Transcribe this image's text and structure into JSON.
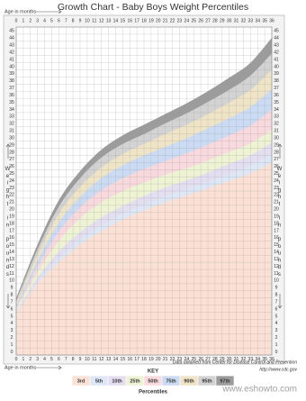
{
  "chart_data": {
    "type": "area",
    "title": "Growth Chart - Baby Boys Weight Percentiles",
    "xlabel": "Age in months",
    "ylabel": "Weight in pounds",
    "key_title": "KEY",
    "legend_title": "Percentiles",
    "source": "Data obtained from Center for Disease Control and Prevention",
    "source_url": "http://www.cdc.gov",
    "watermark": "www.eshowto.com",
    "x": [
      0,
      3,
      6,
      9,
      12,
      15,
      18,
      21,
      24,
      27,
      30,
      33,
      36
    ],
    "xlim": [
      0,
      36
    ],
    "xticks": [
      0,
      1,
      2,
      3,
      4,
      5,
      6,
      7,
      8,
      9,
      10,
      11,
      12,
      13,
      14,
      15,
      16,
      17,
      18,
      19,
      20,
      21,
      22,
      23,
      24,
      25,
      26,
      27,
      28,
      29,
      30,
      31,
      32,
      33,
      34,
      35,
      36
    ],
    "ylim": [
      0,
      46
    ],
    "yticks": [
      0,
      1,
      2,
      3,
      4,
      5,
      6,
      7,
      8,
      9,
      10,
      11,
      12,
      13,
      14,
      15,
      16,
      17,
      18,
      19,
      20,
      21,
      22,
      23,
      24,
      25,
      26,
      27,
      28,
      29,
      30,
      31,
      32,
      33,
      34,
      35,
      36,
      37,
      38,
      39,
      40,
      41,
      42,
      43,
      44,
      45
    ],
    "grid": true,
    "series": [
      {
        "name": "3rd",
        "color": "#fbe1d5",
        "values": [
          5.7,
          10.0,
          13.0,
          15.5,
          17.4,
          19.0,
          20.3,
          21.4,
          22.4,
          23.4,
          24.4,
          25.5,
          27.0
        ]
      },
      {
        "name": "5th",
        "color": "#dde7f5",
        "values": [
          5.8,
          10.3,
          13.6,
          16.2,
          18.2,
          19.8,
          21.1,
          22.3,
          23.3,
          24.3,
          25.4,
          26.6,
          28.2
        ]
      },
      {
        "name": "10th",
        "color": "#e4def1",
        "values": [
          6.0,
          10.8,
          14.5,
          17.2,
          19.3,
          20.9,
          22.3,
          23.5,
          24.5,
          25.6,
          26.8,
          28.0,
          29.8
        ]
      },
      {
        "name": "25th",
        "color": "#eef3d4",
        "values": [
          6.3,
          11.6,
          16.0,
          19.2,
          21.4,
          23.0,
          24.2,
          25.3,
          26.2,
          27.3,
          28.5,
          29.7,
          31.6
        ]
      },
      {
        "name": "50th",
        "color": "#f8d9dd",
        "values": [
          6.6,
          12.4,
          17.3,
          20.7,
          23.1,
          24.8,
          26.1,
          27.2,
          28.3,
          29.5,
          30.8,
          32.2,
          34.4
        ]
      },
      {
        "name": "75th",
        "color": "#cbdbf3",
        "values": [
          6.9,
          13.2,
          18.6,
          22.2,
          24.8,
          26.6,
          28.0,
          29.2,
          30.4,
          31.8,
          33.2,
          34.8,
          37.3
        ]
      },
      {
        "name": "90th",
        "color": "#efe4c6",
        "values": [
          7.2,
          14.0,
          19.8,
          23.6,
          26.3,
          28.2,
          29.6,
          31.0,
          32.3,
          33.8,
          35.4,
          37.2,
          40.0
        ]
      },
      {
        "name": "95th",
        "color": "#d3d3d3",
        "values": [
          7.6,
          14.8,
          20.8,
          24.8,
          27.7,
          29.6,
          31.0,
          32.5,
          33.9,
          35.5,
          37.2,
          39.2,
          42.3
        ]
      },
      {
        "name": "97th",
        "color": "#9c9c9c",
        "values": [
          8.0,
          15.5,
          21.7,
          25.8,
          28.8,
          30.8,
          32.3,
          33.8,
          35.3,
          37.0,
          38.9,
          41.0,
          44.5
        ]
      }
    ]
  }
}
